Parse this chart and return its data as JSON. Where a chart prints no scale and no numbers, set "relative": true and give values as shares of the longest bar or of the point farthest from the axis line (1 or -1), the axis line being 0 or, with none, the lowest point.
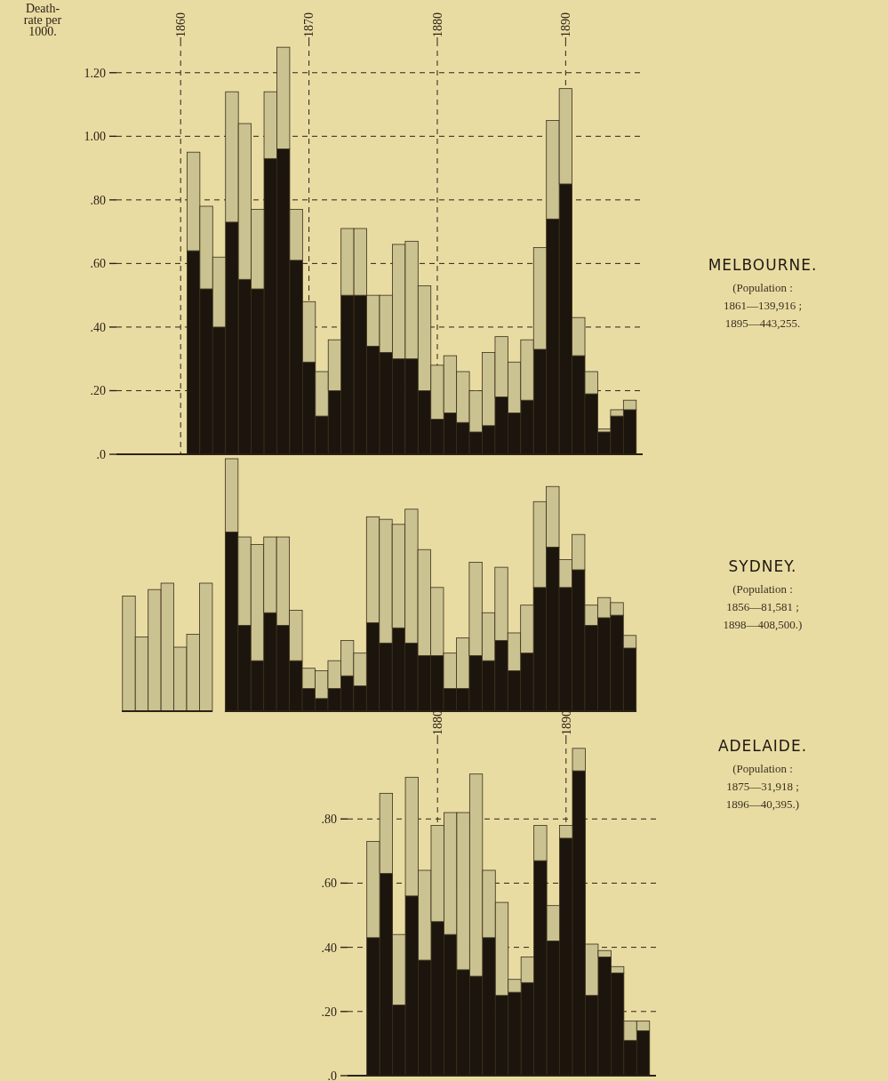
{
  "chart_data": [
    {
      "type": "bar",
      "stacked": true,
      "grid": true,
      "annotations": [
        "MELBOURNE.",
        "(Population : 1861—139,916 ; 1895—443,255."
      ],
      "ylabel": "Death-rate per 1000.",
      "x": [
        1861,
        1862,
        1863,
        1864,
        1865,
        1866,
        1867,
        1868,
        1869,
        1870,
        1871,
        1872,
        1873,
        1874,
        1875,
        1876,
        1877,
        1878,
        1879,
        1880,
        1881,
        1882,
        1883,
        1884,
        1885,
        1886,
        1887,
        1888,
        1889,
        1890,
        1891,
        1892,
        1893,
        1894,
        1895
      ],
      "series": [
        {
          "color": "#1b150d",
          "values": [
            0.64,
            0.52,
            0.4,
            0.73,
            0.55,
            0.52,
            0.93,
            0.96,
            0.61,
            0.29,
            0.12,
            0.2,
            0.5,
            0.5,
            0.34,
            0.32,
            0.3,
            0.3,
            0.2,
            0.11,
            0.13,
            0.1,
            0.07,
            0.09,
            0.18,
            0.13,
            0.17,
            0.33,
            0.74,
            0.85,
            0.31,
            0.19,
            0.07,
            0.12,
            0.14
          ]
        },
        {
          "color": "#cbc291",
          "values": [
            0.31,
            0.26,
            0.22,
            0.41,
            0.49,
            0.25,
            0.21,
            0.32,
            0.16,
            0.19,
            0.14,
            0.16,
            0.21,
            0.21,
            0.16,
            0.18,
            0.36,
            0.37,
            0.33,
            0.17,
            0.18,
            0.16,
            0.13,
            0.23,
            0.19,
            0.16,
            0.19,
            0.32,
            0.31,
            0.3,
            0.12,
            0.07,
            0.01,
            0.02,
            0.03
          ]
        }
      ],
      "xlim": [
        1855,
        1896
      ],
      "xticks": [
        1860,
        1870,
        1880,
        1890
      ],
      "ylim": [
        0,
        1.3
      ],
      "yticks": [
        {
          "value": 0,
          "label": ".0"
        },
        {
          "value": 0.2,
          "label": ".20"
        },
        {
          "value": 0.4,
          "label": ".40"
        },
        {
          "value": 0.6,
          "label": ".60"
        },
        {
          "value": 0.8,
          "label": ".80"
        },
        {
          "value": 1,
          "label": "1.00"
        },
        {
          "value": 1.2,
          "label": "1.20"
        }
      ]
    },
    {
      "type": "bar",
      "relative": true,
      "categories": [
        null,
        null,
        null,
        null,
        null,
        null,
        null
      ],
      "series": [
        {
          "color": "#cbc291",
          "values": [
            0.9,
            0.58,
            0.95,
            1.0,
            0.5,
            0.6,
            1.0
          ]
        }
      ]
    },
    {
      "type": "bar",
      "stacked": true,
      "relative": true,
      "annotations": [
        "SYDNEY.",
        "(Population : 1856—81,581 ; 1898—408,500.)"
      ],
      "categories": [
        null,
        null,
        null,
        null,
        null,
        null,
        null,
        null,
        null,
        null,
        null,
        null,
        null,
        null,
        null,
        null,
        null,
        null,
        null,
        null,
        null,
        null,
        null,
        null,
        null,
        null,
        null,
        null,
        null,
        null,
        null,
        null
      ],
      "series": [
        {
          "color": "#1b150d",
          "values": [
            0.71,
            0.34,
            0.2,
            0.39,
            0.34,
            0.2,
            0.09,
            0.05,
            0.09,
            0.14,
            0.1,
            0.35,
            0.27,
            0.33,
            0.27,
            0.22,
            0.22,
            0.09,
            0.09,
            0.22,
            0.2,
            0.28,
            0.16,
            0.23,
            0.49,
            0.65,
            0.49,
            0.56,
            0.34,
            0.37,
            0.38,
            0.25
          ]
        },
        {
          "color": "#cbc291",
          "values": [
            0.29,
            0.35,
            0.46,
            0.3,
            0.35,
            0.2,
            0.08,
            0.11,
            0.11,
            0.14,
            0.13,
            0.42,
            0.49,
            0.41,
            0.53,
            0.42,
            0.27,
            0.14,
            0.2,
            0.37,
            0.19,
            0.29,
            0.15,
            0.19,
            0.34,
            0.24,
            0.11,
            0.14,
            0.08,
            0.08,
            0.05,
            0.05
          ]
        }
      ]
    },
    {
      "type": "bar",
      "stacked": true,
      "grid": true,
      "annotations": [
        "ADELAIDE.",
        "(Population : 1875—31,918 ; 1896—40,395.)"
      ],
      "x": [
        1875,
        1876,
        1877,
        1878,
        1879,
        1880,
        1881,
        1882,
        1883,
        1884,
        1885,
        1886,
        1887,
        1888,
        1889,
        1890,
        1891,
        1892,
        1893,
        1894,
        1895,
        1896
      ],
      "series": [
        {
          "color": "#1b150d",
          "values": [
            0.43,
            0.63,
            0.22,
            0.56,
            0.36,
            0.48,
            0.44,
            0.33,
            0.31,
            0.43,
            0.25,
            0.26,
            0.29,
            0.67,
            0.42,
            0.74,
            0.95,
            0.25,
            0.37,
            0.32,
            0.11,
            0.14
          ]
        },
        {
          "color": "#cbc291",
          "values": [
            0.3,
            0.25,
            0.22,
            0.37,
            0.28,
            0.3,
            0.38,
            0.49,
            0.63,
            0.21,
            0.29,
            0.04,
            0.08,
            0.11,
            0.11,
            0.04,
            0.07,
            0.16,
            0.02,
            0.02,
            0.06,
            0.03
          ]
        }
      ],
      "xlim": [
        1873,
        1897
      ],
      "xticks": [
        1880,
        1890
      ],
      "ylim": [
        0,
        1.05
      ],
      "yticks": [
        {
          "value": 0,
          "label": ".0"
        },
        {
          "value": 0.2,
          "label": ".20"
        },
        {
          "value": 0.4,
          "label": ".40"
        },
        {
          "value": 0.6,
          "label": ".60"
        },
        {
          "value": 0.8,
          "label": ".80"
        }
      ]
    }
  ]
}
